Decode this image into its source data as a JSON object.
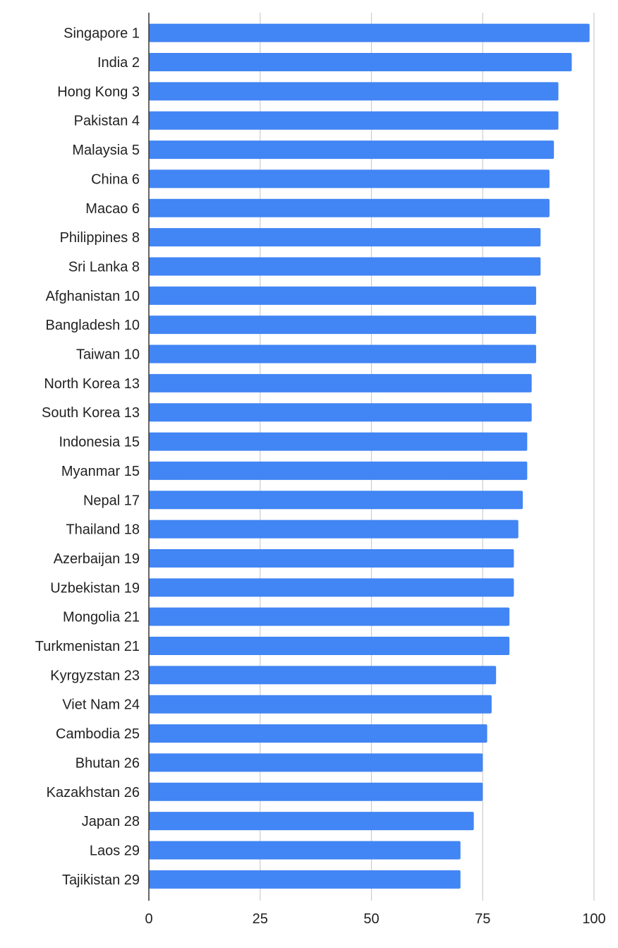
{
  "chart_data": {
    "type": "bar",
    "orientation": "horizontal",
    "title": "",
    "xlabel": "",
    "ylabel": "",
    "xlim": [
      0,
      100
    ],
    "x_ticks": [
      0,
      25,
      50,
      75,
      100
    ],
    "grid": "vertical",
    "legend": "none",
    "bar_color": "#4285f4",
    "categories": [
      "Singapore 1",
      "India 2",
      "Hong Kong 3",
      "Pakistan 4",
      "Malaysia 5",
      "China 6",
      "Macao 6",
      "Philippines 8",
      "Sri Lanka 8",
      "Afghanistan 10",
      "Bangladesh 10",
      "Taiwan 10",
      "North Korea 13",
      "South Korea 13",
      "Indonesia 15",
      "Myanmar 15",
      "Nepal 17",
      "Thailand 18",
      "Azerbaijan 19",
      "Uzbekistan 19",
      "Mongolia 21",
      "Turkmenistan 21",
      "Kyrgyzstan 23",
      "Viet Nam 24",
      "Cambodia 25",
      "Bhutan 26",
      "Kazakhstan 26",
      "Japan 28",
      "Laos 29",
      "Tajikistan 29"
    ],
    "values": [
      99,
      95,
      92,
      92,
      91,
      90,
      90,
      88,
      88,
      87,
      87,
      87,
      86,
      86,
      85,
      85,
      84,
      83,
      82,
      82,
      81,
      81,
      78,
      77,
      76,
      75,
      75,
      73,
      70,
      70
    ]
  }
}
